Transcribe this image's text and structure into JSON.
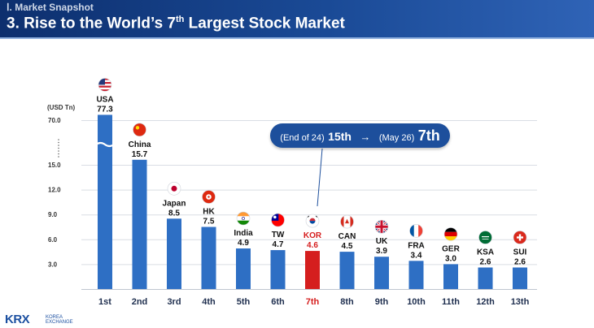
{
  "header": {
    "section": "Ⅰ. Market Snapshot",
    "title_main": "3. Rise to the World’s 7",
    "title_sup": "th",
    "title_rest": " Largest Stock Market"
  },
  "callout": {
    "from_label": "(End of 24)",
    "from_rank": "15th",
    "arrow": "→",
    "to_label": "(May 26)",
    "to_rank": "7th"
  },
  "logo": {
    "mark": "KRX",
    "line1": "KOREA",
    "line2": "EXCHANGE"
  },
  "colors": {
    "bar": "#2e6fc4",
    "highlight_bar": "#d51e1e",
    "highlight_text": "#d51e1e",
    "header": "#1a4a96"
  },
  "chart_data": {
    "type": "bar",
    "ylabel": "(USD Tn)",
    "yticks": [
      "70.0",
      "15.0",
      "12.0",
      "9.0",
      "6.0",
      "3.0"
    ],
    "axis_break": true,
    "grid": true,
    "categories": [
      "1st",
      "2nd",
      "3rd",
      "4th",
      "5th",
      "6th",
      "7th",
      "8th",
      "9th",
      "10th",
      "11th",
      "12th",
      "13th"
    ],
    "countries": [
      "USA",
      "China",
      "Japan",
      "HK",
      "India",
      "TW",
      "KOR",
      "CAN",
      "UK",
      "FRA",
      "GER",
      "KSA",
      "SUI"
    ],
    "values": [
      77.3,
      15.7,
      8.5,
      7.5,
      4.9,
      4.7,
      4.6,
      4.5,
      3.9,
      3.4,
      3.0,
      2.6,
      2.6
    ],
    "value_labels": [
      "77.3",
      "15.7",
      "8.5",
      "7.5",
      "4.9",
      "4.7",
      "4.6",
      "4.5",
      "3.9",
      "3.4",
      "3.0",
      "2.6",
      "2.6"
    ],
    "flags": [
      "usa-flag-icon",
      "china-flag-icon",
      "japan-flag-icon",
      "hk-flag-icon",
      "india-flag-icon",
      "taiwan-flag-icon",
      "korea-flag-icon",
      "canada-flag-icon",
      "uk-flag-icon",
      "france-flag-icon",
      "germany-flag-icon",
      "saudi-flag-icon",
      "swiss-flag-icon"
    ],
    "highlight_index": 6
  }
}
